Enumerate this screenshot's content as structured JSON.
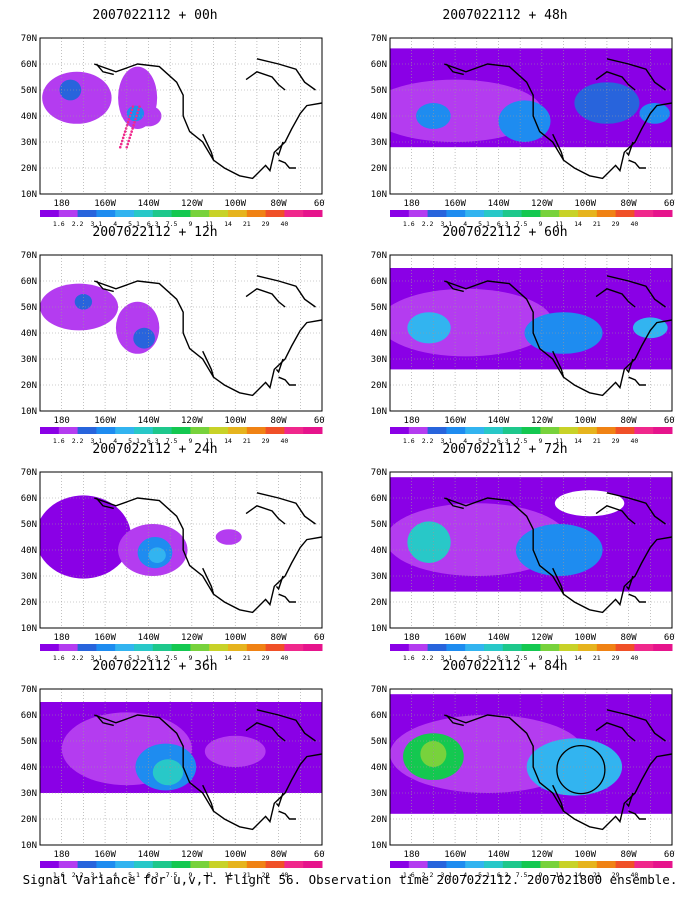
{
  "panels": [
    {
      "title": "2007022112 + 00h",
      "step": 0,
      "circle": false
    },
    {
      "title": "2007022112 + 12h",
      "step": 1,
      "circle": false
    },
    {
      "title": "2007022112 + 24h",
      "step": 2,
      "circle": false
    },
    {
      "title": "2007022112 + 36h",
      "step": 3,
      "circle": false
    },
    {
      "title": "2007022112 + 48h",
      "step": 4,
      "circle": false
    },
    {
      "title": "2007022112 + 60h",
      "step": 5,
      "circle": false
    },
    {
      "title": "2007022112 + 72h",
      "step": 6,
      "circle": false
    },
    {
      "title": "2007022112 + 84h",
      "step": 7,
      "circle": true
    }
  ],
  "lat_labels": [
    "10N",
    "20N",
    "30N",
    "40N",
    "50N",
    "60N",
    "70N"
  ],
  "lon_labels": [
    "180",
    "160W",
    "140W",
    "120W",
    "100W",
    "80W",
    "60W"
  ],
  "colorbar": {
    "colors": [
      "#8a00e6",
      "#b43cf0",
      "#2864dc",
      "#1e8cf0",
      "#32b4f0",
      "#28c8c8",
      "#1ec88c",
      "#14c850",
      "#78d23c",
      "#c8d228",
      "#e6b41e",
      "#f08214",
      "#f05028",
      "#f0288c",
      "#e6148c"
    ],
    "labels": [
      "1.6",
      "2.2",
      "3.1",
      "4",
      "5.1",
      "6.3",
      "7.5",
      "9",
      "11",
      "14",
      "21",
      "29",
      "40"
    ]
  },
  "caption": "Signal Variance for u,v,T. Flight 56. Observation time 2007022112. 2007021800 ensemble."
}
